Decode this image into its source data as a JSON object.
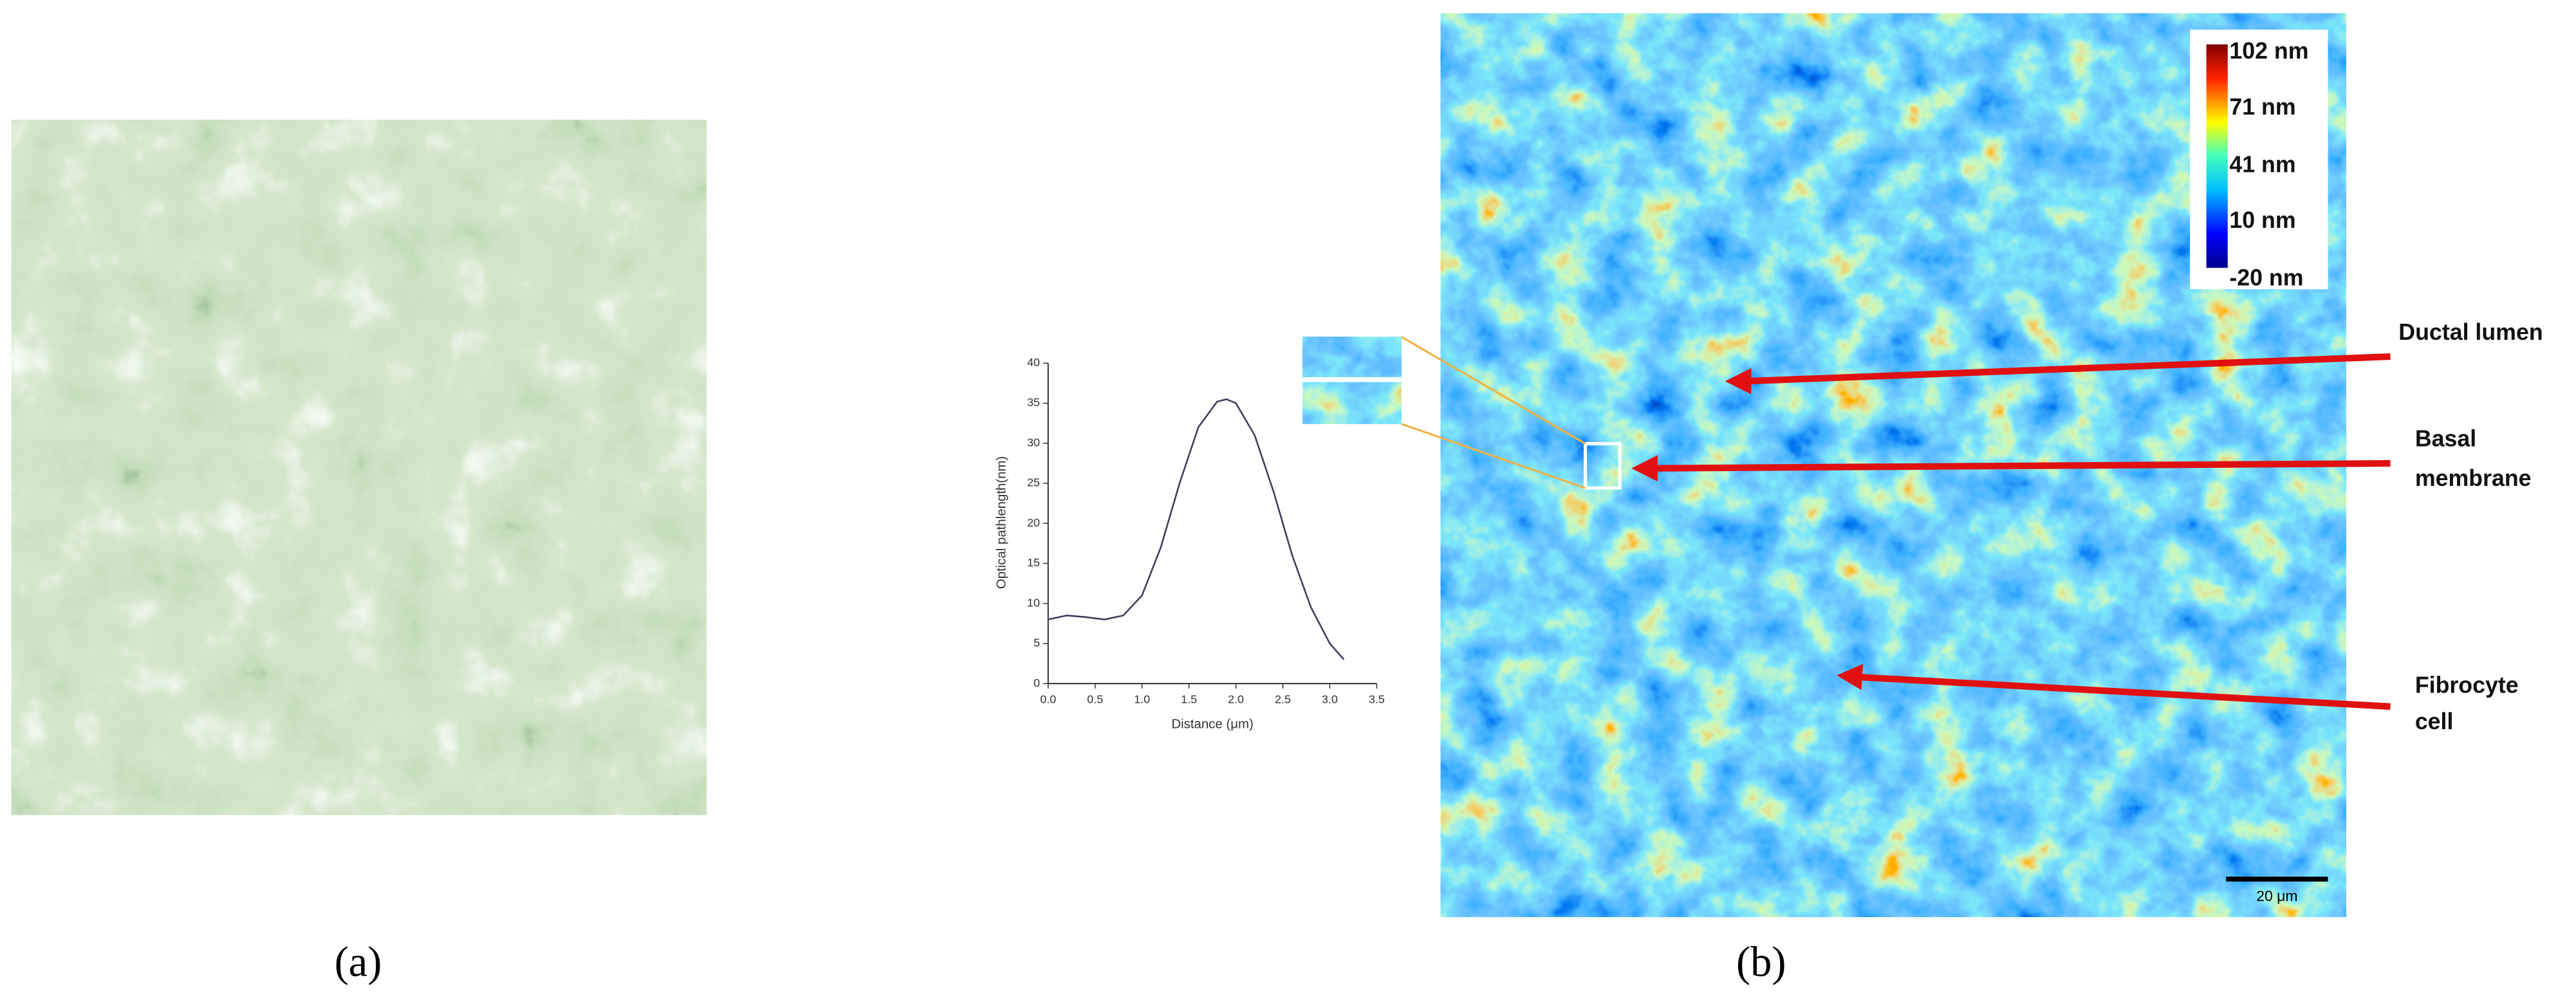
{
  "panels": [
    "(a)",
    "(b)"
  ],
  "colorbar": {
    "labels": [
      "102 nm",
      "71 nm",
      "41 nm",
      "10 nm",
      "-20 nm"
    ]
  },
  "annotations": {
    "ductal_lumen": "Ductal lumen",
    "basal_membrane": [
      "Basal",
      "membrane"
    ],
    "fibrocyte_cell": [
      "Fibrocyte",
      "cell"
    ]
  },
  "scale_bar": "20 μm",
  "chart_data": {
    "type": "line",
    "x_label": "Distance (μm)",
    "y_label": "Optical pathlength(nm)",
    "x": [
      0,
      0.2,
      0.4,
      0.6,
      0.8,
      1.0,
      1.2,
      1.4,
      1.6,
      1.8,
      1.9,
      2.0,
      2.2,
      2.4,
      2.6,
      2.8,
      3.0,
      3.15
    ],
    "values": [
      8,
      8.5,
      8.3,
      8,
      8.5,
      11,
      17,
      25,
      32,
      35.2,
      35.5,
      35,
      31,
      24,
      16,
      9.5,
      5,
      3
    ],
    "color": "#3a3f5c",
    "xlim": [
      0,
      3.5
    ],
    "xticks": [
      {
        "value": 0,
        "label": "0.0"
      },
      0.5,
      {
        "value": 1,
        "label": "1.0"
      },
      1.5,
      {
        "value": 2,
        "label": "2.0"
      },
      2.5,
      {
        "value": 3,
        "label": "3.0"
      },
      3.5
    ],
    "ylim": [
      0,
      40
    ],
    "yticks": [
      0,
      5,
      10,
      15,
      20,
      25,
      30,
      35,
      40
    ]
  }
}
